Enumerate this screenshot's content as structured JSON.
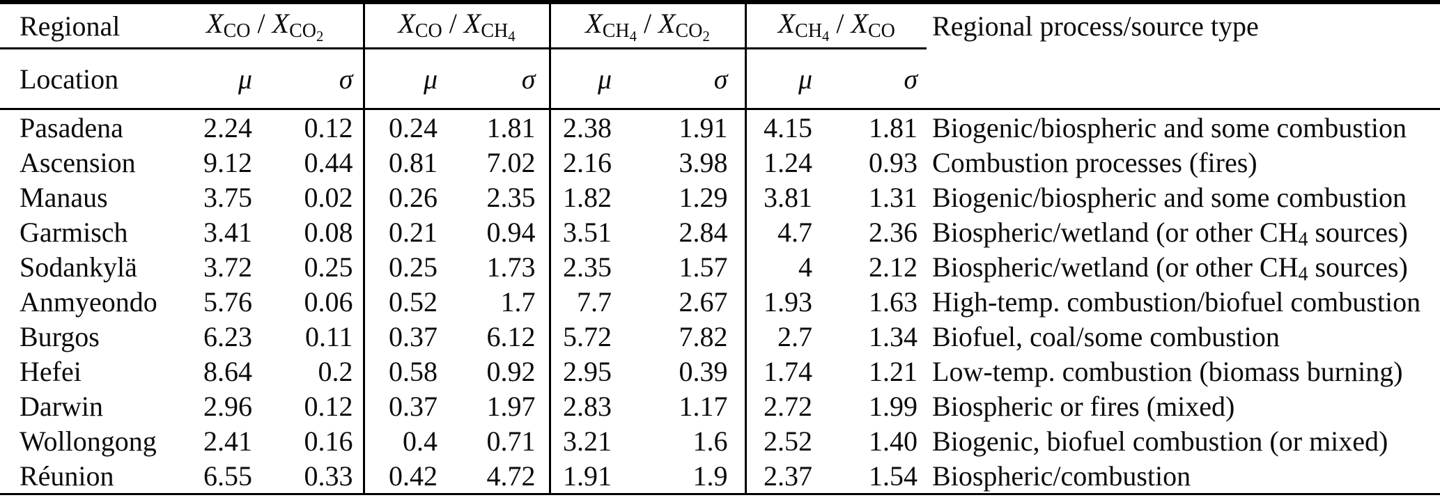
{
  "table": {
    "header": {
      "col1_row1": "Regional",
      "col1_row2": "Location",
      "variable_symbol": "X",
      "ratio_columns": [
        {
          "numerator": "CO",
          "denominator": "CO2"
        },
        {
          "numerator": "CO",
          "denominator": "CH4"
        },
        {
          "numerator": "CH4",
          "denominator": "CO2"
        },
        {
          "numerator": "CH4",
          "denominator": "CO"
        }
      ],
      "mu_label": "μ",
      "sigma_label": "σ",
      "last_col": "Regional process/source type"
    },
    "rows": [
      {
        "location": "Pasadena",
        "values": [
          "2.24",
          "0.12",
          "0.24",
          "1.81",
          "2.38",
          "1.91",
          "4.15",
          "1.81"
        ],
        "process": "Biogenic/biospheric and some combustion"
      },
      {
        "location": "Ascension",
        "values": [
          "9.12",
          "0.44",
          "0.81",
          "7.02",
          "2.16",
          "3.98",
          "1.24",
          "0.93"
        ],
        "process": "Combustion processes (fires)"
      },
      {
        "location": "Manaus",
        "values": [
          "3.75",
          "0.02",
          "0.26",
          "2.35",
          "1.82",
          "1.29",
          "3.81",
          "1.31"
        ],
        "process": "Biogenic/biospheric and some combustion"
      },
      {
        "location": "Garmisch",
        "values": [
          "3.41",
          "0.08",
          "0.21",
          "0.94",
          "3.51",
          "2.84",
          "4.7",
          "2.36"
        ],
        "process": "Biospheric/wetland (or other CH4 sources)"
      },
      {
        "location": "Sodankylä",
        "values": [
          "3.72",
          "0.25",
          "0.25",
          "1.73",
          "2.35",
          "1.57",
          "4",
          "2.12"
        ],
        "process": "Biospheric/wetland (or other CH4 sources)"
      },
      {
        "location": "Anmyeondo",
        "values": [
          "5.76",
          "0.06",
          "0.52",
          "1.7",
          "7.7",
          "2.67",
          "1.93",
          "1.63"
        ],
        "process": "High-temp. combustion/biofuel combustion"
      },
      {
        "location": "Burgos",
        "values": [
          "6.23",
          "0.11",
          "0.37",
          "6.12",
          "5.72",
          "7.82",
          "2.7",
          "1.34"
        ],
        "process": "Biofuel, coal/some combustion"
      },
      {
        "location": "Hefei",
        "values": [
          "8.64",
          "0.2",
          "0.58",
          "0.92",
          "2.95",
          "0.39",
          "1.74",
          "1.21"
        ],
        "process": "Low-temp. combustion (biomass burning)"
      },
      {
        "location": "Darwin",
        "values": [
          "2.96",
          "0.12",
          "0.37",
          "1.97",
          "2.83",
          "1.17",
          "2.72",
          "1.99"
        ],
        "process": "Biospheric or fires (mixed)"
      },
      {
        "location": "Wollongong",
        "values": [
          "2.41",
          "0.16",
          "0.4",
          "0.71",
          "3.21",
          "1.6",
          "2.52",
          "1.40"
        ],
        "process": "Biogenic, biofuel combustion (or mixed)"
      },
      {
        "location": "Réunion",
        "values": [
          "6.55",
          "0.33",
          "0.42",
          "4.72",
          "1.91",
          "1.9",
          "2.37",
          "1.54"
        ],
        "process": "Biospheric/combustion"
      }
    ]
  }
}
